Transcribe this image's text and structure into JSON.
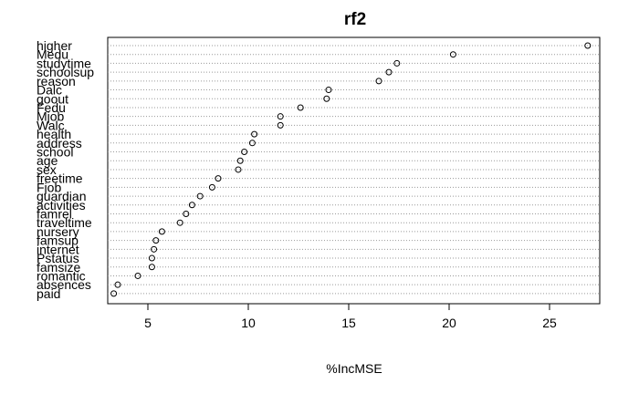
{
  "chart_data": {
    "type": "scatter",
    "title": "rf2",
    "xlabel": "%IncMSE",
    "ylabel": "",
    "xlim": [
      3.0,
      27.5
    ],
    "xticks": [
      5,
      10,
      15,
      20,
      25
    ],
    "grid": "dotted horizontal guides per variable",
    "legend": "none",
    "categories": [
      "higher",
      "Medu",
      "studytime",
      "schoolsup",
      "reason",
      "Dalc",
      "goout",
      "Fedu",
      "Mjob",
      "Walc",
      "health",
      "address",
      "school",
      "age",
      "sex",
      "freetime",
      "Fjob",
      "guardian",
      "activities",
      "famrel",
      "traveltime",
      "nursery",
      "famsup",
      "internet",
      "Pstatus",
      "famsize",
      "romantic",
      "absences",
      "paid"
    ],
    "values": [
      26.9,
      20.2,
      17.4,
      17.0,
      16.5,
      14.0,
      13.9,
      12.6,
      11.6,
      11.6,
      10.3,
      10.2,
      9.8,
      9.6,
      9.5,
      8.5,
      8.2,
      7.6,
      7.2,
      6.9,
      6.6,
      5.7,
      5.4,
      5.3,
      5.2,
      5.2,
      4.5,
      3.5,
      3.3
    ]
  }
}
